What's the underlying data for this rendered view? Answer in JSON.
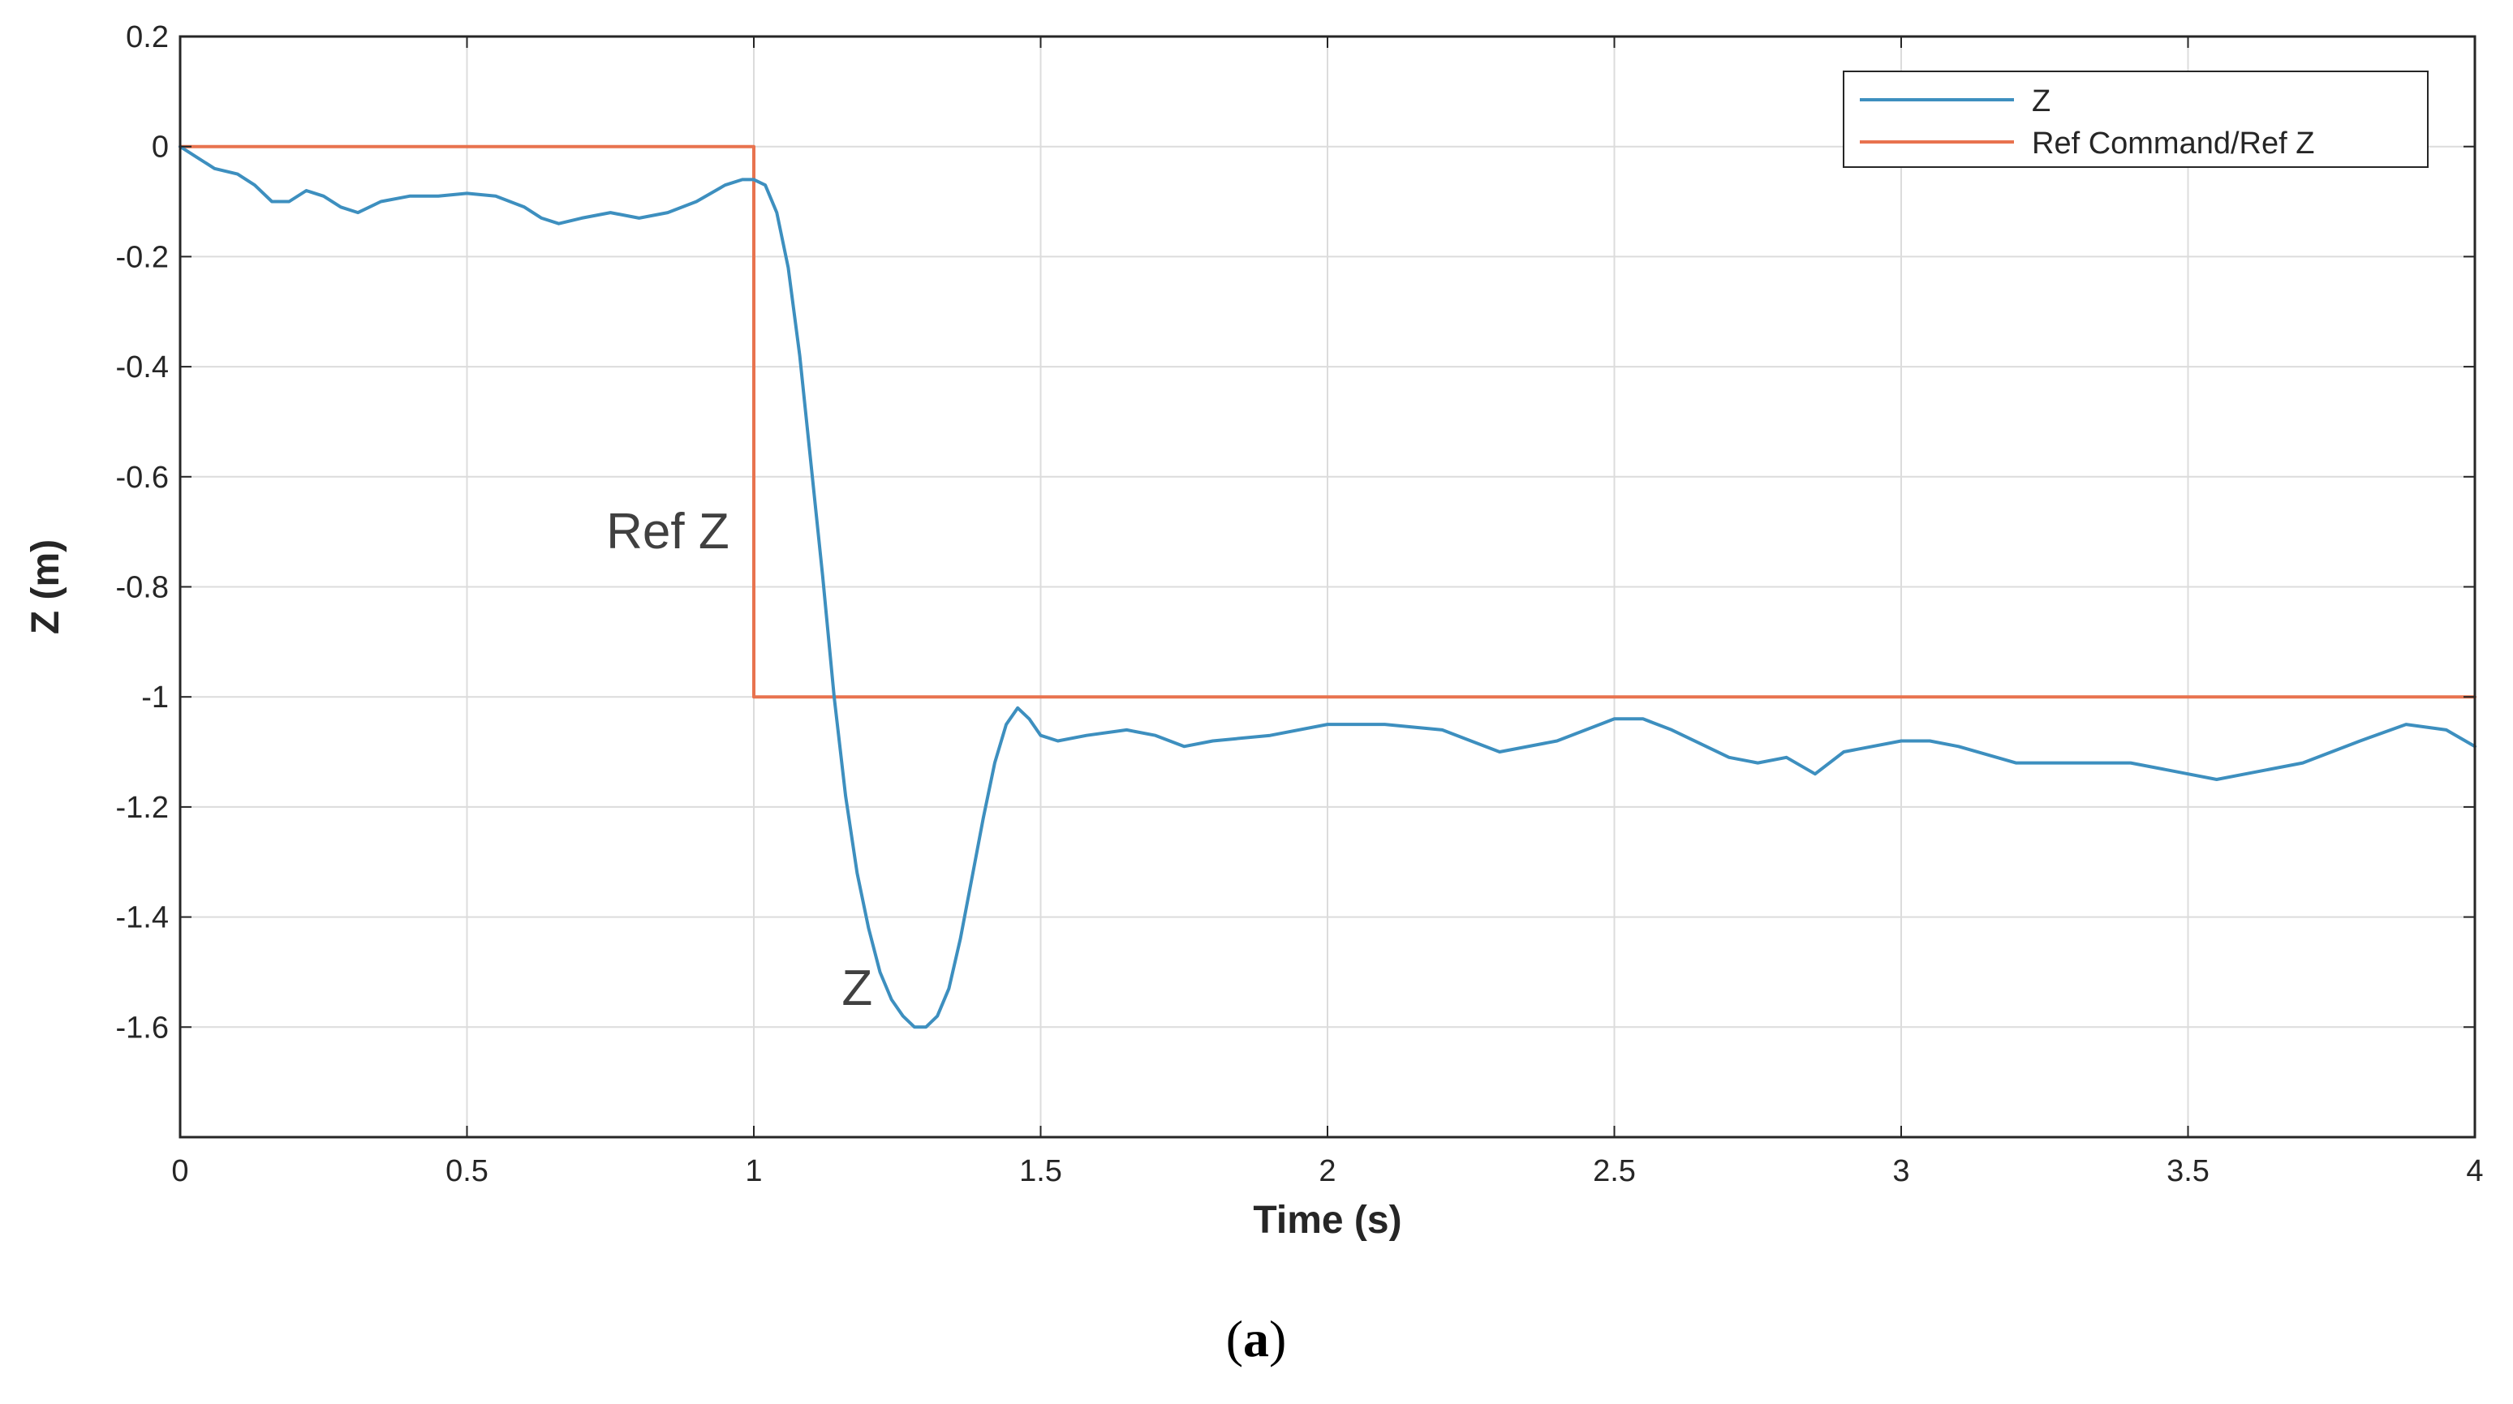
{
  "chart_data": {
    "type": "line",
    "title": "",
    "xlabel": "Time (s)",
    "ylabel": "Z (m)",
    "xlim": [
      0,
      4
    ],
    "ylim": [
      -1.8,
      0.2
    ],
    "xticks": [
      0,
      0.5,
      1,
      1.5,
      2,
      2.5,
      3,
      3.5,
      4
    ],
    "yticks": [
      0.2,
      0,
      -0.2,
      -0.4,
      -0.6,
      -0.8,
      -1,
      -1.2,
      -1.4,
      -1.6
    ],
    "grid": true,
    "legend_position": "top-right",
    "series": [
      {
        "name": "Z",
        "color": "#3d8fbf",
        "x": [
          0,
          0.03,
          0.06,
          0.1,
          0.13,
          0.16,
          0.19,
          0.22,
          0.25,
          0.28,
          0.31,
          0.35,
          0.4,
          0.45,
          0.5,
          0.55,
          0.6,
          0.63,
          0.66,
          0.7,
          0.75,
          0.8,
          0.85,
          0.9,
          0.95,
          0.98,
          1.0,
          1.02,
          1.04,
          1.06,
          1.08,
          1.1,
          1.12,
          1.14,
          1.16,
          1.18,
          1.2,
          1.22,
          1.24,
          1.26,
          1.28,
          1.3,
          1.32,
          1.34,
          1.36,
          1.38,
          1.4,
          1.42,
          1.44,
          1.46,
          1.48,
          1.5,
          1.53,
          1.58,
          1.65,
          1.7,
          1.75,
          1.8,
          1.9,
          2.0,
          2.1,
          2.2,
          2.25,
          2.3,
          2.4,
          2.5,
          2.55,
          2.6,
          2.7,
          2.75,
          2.8,
          2.85,
          2.9,
          3.0,
          3.05,
          3.1,
          3.2,
          3.3,
          3.4,
          3.5,
          3.55,
          3.6,
          3.7,
          3.8,
          3.88,
          3.95,
          4.0
        ],
        "values": [
          0,
          -0.02,
          -0.04,
          -0.05,
          -0.07,
          -0.1,
          -0.1,
          -0.08,
          -0.09,
          -0.11,
          -0.12,
          -0.1,
          -0.09,
          -0.09,
          -0.085,
          -0.09,
          -0.11,
          -0.13,
          -0.14,
          -0.13,
          -0.12,
          -0.13,
          -0.12,
          -0.1,
          -0.07,
          -0.06,
          -0.06,
          -0.07,
          -0.12,
          -0.22,
          -0.38,
          -0.58,
          -0.78,
          -1.0,
          -1.18,
          -1.32,
          -1.42,
          -1.5,
          -1.55,
          -1.58,
          -1.6,
          -1.6,
          -1.58,
          -1.53,
          -1.44,
          -1.33,
          -1.22,
          -1.12,
          -1.05,
          -1.02,
          -1.04,
          -1.07,
          -1.08,
          -1.07,
          -1.06,
          -1.07,
          -1.09,
          -1.08,
          -1.07,
          -1.05,
          -1.05,
          -1.06,
          -1.08,
          -1.1,
          -1.08,
          -1.04,
          -1.04,
          -1.06,
          -1.11,
          -1.12,
          -1.11,
          -1.14,
          -1.1,
          -1.08,
          -1.08,
          -1.09,
          -1.12,
          -1.12,
          -1.12,
          -1.14,
          -1.15,
          -1.14,
          -1.12,
          -1.08,
          -1.05,
          -1.06,
          -1.09
        ]
      },
      {
        "name": "Ref Command/Ref Z",
        "color": "#e8734f",
        "x": [
          0,
          1,
          1,
          4
        ],
        "values": [
          0,
          0,
          -1,
          -1
        ]
      }
    ],
    "annotations": [
      {
        "text": "Ref Z",
        "x": 0.85,
        "y": -0.73
      },
      {
        "text": "Z",
        "x": 1.18,
        "y": -1.56
      }
    ]
  },
  "caption": {
    "open": "(",
    "letter": "a",
    "close": ")"
  }
}
